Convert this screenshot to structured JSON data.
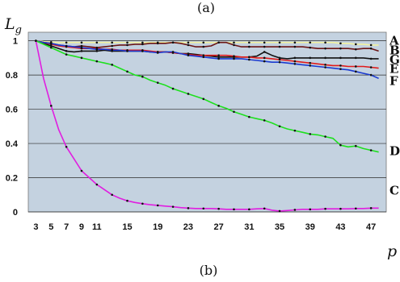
{
  "chart_data": {
    "type": "line",
    "caption_top": "(a)",
    "caption_bottom": "(b)",
    "ylabel": "L",
    "ylabel_sub": "g",
    "xlabel": "p",
    "ylim": [
      0,
      1.05
    ],
    "y_ticks": [
      "0",
      "0.2",
      "0.4",
      "0.6",
      "0.8",
      "1"
    ],
    "xlim": [
      2,
      49
    ],
    "x_ticks": [
      "3",
      "5",
      "7",
      "9",
      "11",
      "15",
      "19",
      "23",
      "27",
      "31",
      "35",
      "39",
      "43",
      "47"
    ],
    "grid": "horizontal",
    "plot_background": "#c4d2e0",
    "x": [
      3,
      4,
      5,
      6,
      7,
      8,
      9,
      10,
      11,
      12,
      13,
      14,
      15,
      16,
      17,
      18,
      19,
      20,
      21,
      22,
      23,
      24,
      25,
      26,
      27,
      28,
      29,
      30,
      31,
      32,
      33,
      34,
      35,
      36,
      37,
      38,
      39,
      40,
      41,
      42,
      43,
      44,
      45,
      46,
      47,
      48
    ],
    "series": [
      {
        "name": "A",
        "color": "#f2f2a0",
        "values": [
          1.0,
          0.995,
          0.992,
          0.99,
          0.99,
          0.99,
          0.99,
          0.99,
          0.99,
          0.99,
          0.99,
          0.99,
          0.99,
          0.99,
          0.99,
          0.99,
          0.99,
          0.99,
          0.99,
          0.99,
          0.99,
          0.99,
          0.99,
          0.99,
          0.99,
          0.99,
          0.99,
          0.99,
          0.99,
          0.99,
          0.99,
          0.99,
          0.99,
          0.99,
          0.99,
          0.99,
          0.99,
          0.99,
          0.99,
          0.99,
          0.985,
          0.985,
          0.98,
          0.98,
          0.975,
          0.975
        ]
      },
      {
        "name": "B",
        "color": "#6b1414",
        "values": [
          1.0,
          0.99,
          0.985,
          0.975,
          0.97,
          0.965,
          0.97,
          0.965,
          0.96,
          0.965,
          0.97,
          0.975,
          0.975,
          0.98,
          0.98,
          0.985,
          0.985,
          0.985,
          0.99,
          0.985,
          0.975,
          0.965,
          0.965,
          0.97,
          0.99,
          0.99,
          0.975,
          0.965,
          0.965,
          0.965,
          0.965,
          0.965,
          0.965,
          0.965,
          0.965,
          0.965,
          0.96,
          0.955,
          0.955,
          0.955,
          0.955,
          0.955,
          0.95,
          0.955,
          0.955,
          0.94
        ]
      },
      {
        "name": "G",
        "color": "#111111",
        "values": [
          1.0,
          0.985,
          0.97,
          0.955,
          0.94,
          0.935,
          0.94,
          0.94,
          0.94,
          0.945,
          0.94,
          0.94,
          0.94,
          0.94,
          0.94,
          0.935,
          0.935,
          0.935,
          0.93,
          0.925,
          0.925,
          0.92,
          0.915,
          0.91,
          0.905,
          0.905,
          0.905,
          0.905,
          0.905,
          0.91,
          0.935,
          0.915,
          0.9,
          0.895,
          0.9,
          0.9,
          0.9,
          0.9,
          0.9,
          0.9,
          0.9,
          0.9,
          0.9,
          0.9,
          0.895,
          0.895
        ]
      },
      {
        "name": "E",
        "color": "#e01a1a",
        "values": [
          1.0,
          0.99,
          0.98,
          0.97,
          0.965,
          0.96,
          0.955,
          0.955,
          0.955,
          0.95,
          0.95,
          0.945,
          0.945,
          0.945,
          0.945,
          0.94,
          0.935,
          0.935,
          0.93,
          0.925,
          0.92,
          0.915,
          0.915,
          0.915,
          0.915,
          0.915,
          0.91,
          0.905,
          0.905,
          0.9,
          0.9,
          0.895,
          0.89,
          0.885,
          0.88,
          0.875,
          0.87,
          0.865,
          0.86,
          0.855,
          0.855,
          0.85,
          0.85,
          0.85,
          0.845,
          0.84
        ]
      },
      {
        "name": "F",
        "color": "#1a3ad0",
        "values": [
          1.0,
          0.99,
          0.985,
          0.975,
          0.97,
          0.965,
          0.96,
          0.955,
          0.95,
          0.95,
          0.945,
          0.945,
          0.94,
          0.94,
          0.94,
          0.935,
          0.93,
          0.935,
          0.935,
          0.925,
          0.915,
          0.91,
          0.905,
          0.9,
          0.895,
          0.895,
          0.895,
          0.895,
          0.89,
          0.885,
          0.88,
          0.875,
          0.875,
          0.87,
          0.865,
          0.86,
          0.855,
          0.85,
          0.845,
          0.84,
          0.835,
          0.83,
          0.82,
          0.81,
          0.8,
          0.78
        ]
      },
      {
        "name": "D",
        "color": "#1ee01e",
        "values": [
          1.0,
          0.98,
          0.96,
          0.94,
          0.92,
          0.91,
          0.9,
          0.89,
          0.88,
          0.87,
          0.86,
          0.84,
          0.82,
          0.8,
          0.79,
          0.77,
          0.755,
          0.74,
          0.72,
          0.705,
          0.69,
          0.675,
          0.66,
          0.64,
          0.62,
          0.605,
          0.585,
          0.57,
          0.555,
          0.545,
          0.535,
          0.52,
          0.5,
          0.485,
          0.475,
          0.465,
          0.455,
          0.45,
          0.44,
          0.43,
          0.39,
          0.38,
          0.385,
          0.37,
          0.36,
          0.35
        ]
      },
      {
        "name": "C",
        "color": "#e01ee0",
        "values": [
          1.0,
          0.78,
          0.62,
          0.48,
          0.38,
          0.31,
          0.24,
          0.2,
          0.16,
          0.13,
          0.1,
          0.08,
          0.065,
          0.055,
          0.048,
          0.042,
          0.038,
          0.034,
          0.03,
          0.025,
          0.022,
          0.02,
          0.02,
          0.02,
          0.018,
          0.015,
          0.015,
          0.015,
          0.015,
          0.018,
          0.02,
          0.01,
          0.005,
          0.008,
          0.012,
          0.015,
          0.015,
          0.015,
          0.018,
          0.018,
          0.018,
          0.018,
          0.02,
          0.02,
          0.022,
          0.022
        ]
      }
    ],
    "labels_right": [
      {
        "series": "A",
        "text": "A",
        "y": 1.0
      },
      {
        "series": "B",
        "text": "B",
        "y": 0.945
      },
      {
        "series": "G",
        "text": "G",
        "y": 0.89
      },
      {
        "series": "E",
        "text": "E",
        "y": 0.835
      },
      {
        "series": "F",
        "text": "F",
        "y": 0.765
      },
      {
        "series": "D",
        "text": "D",
        "y": 0.355
      },
      {
        "series": "C",
        "text": "C",
        "y": 0.125
      }
    ]
  }
}
